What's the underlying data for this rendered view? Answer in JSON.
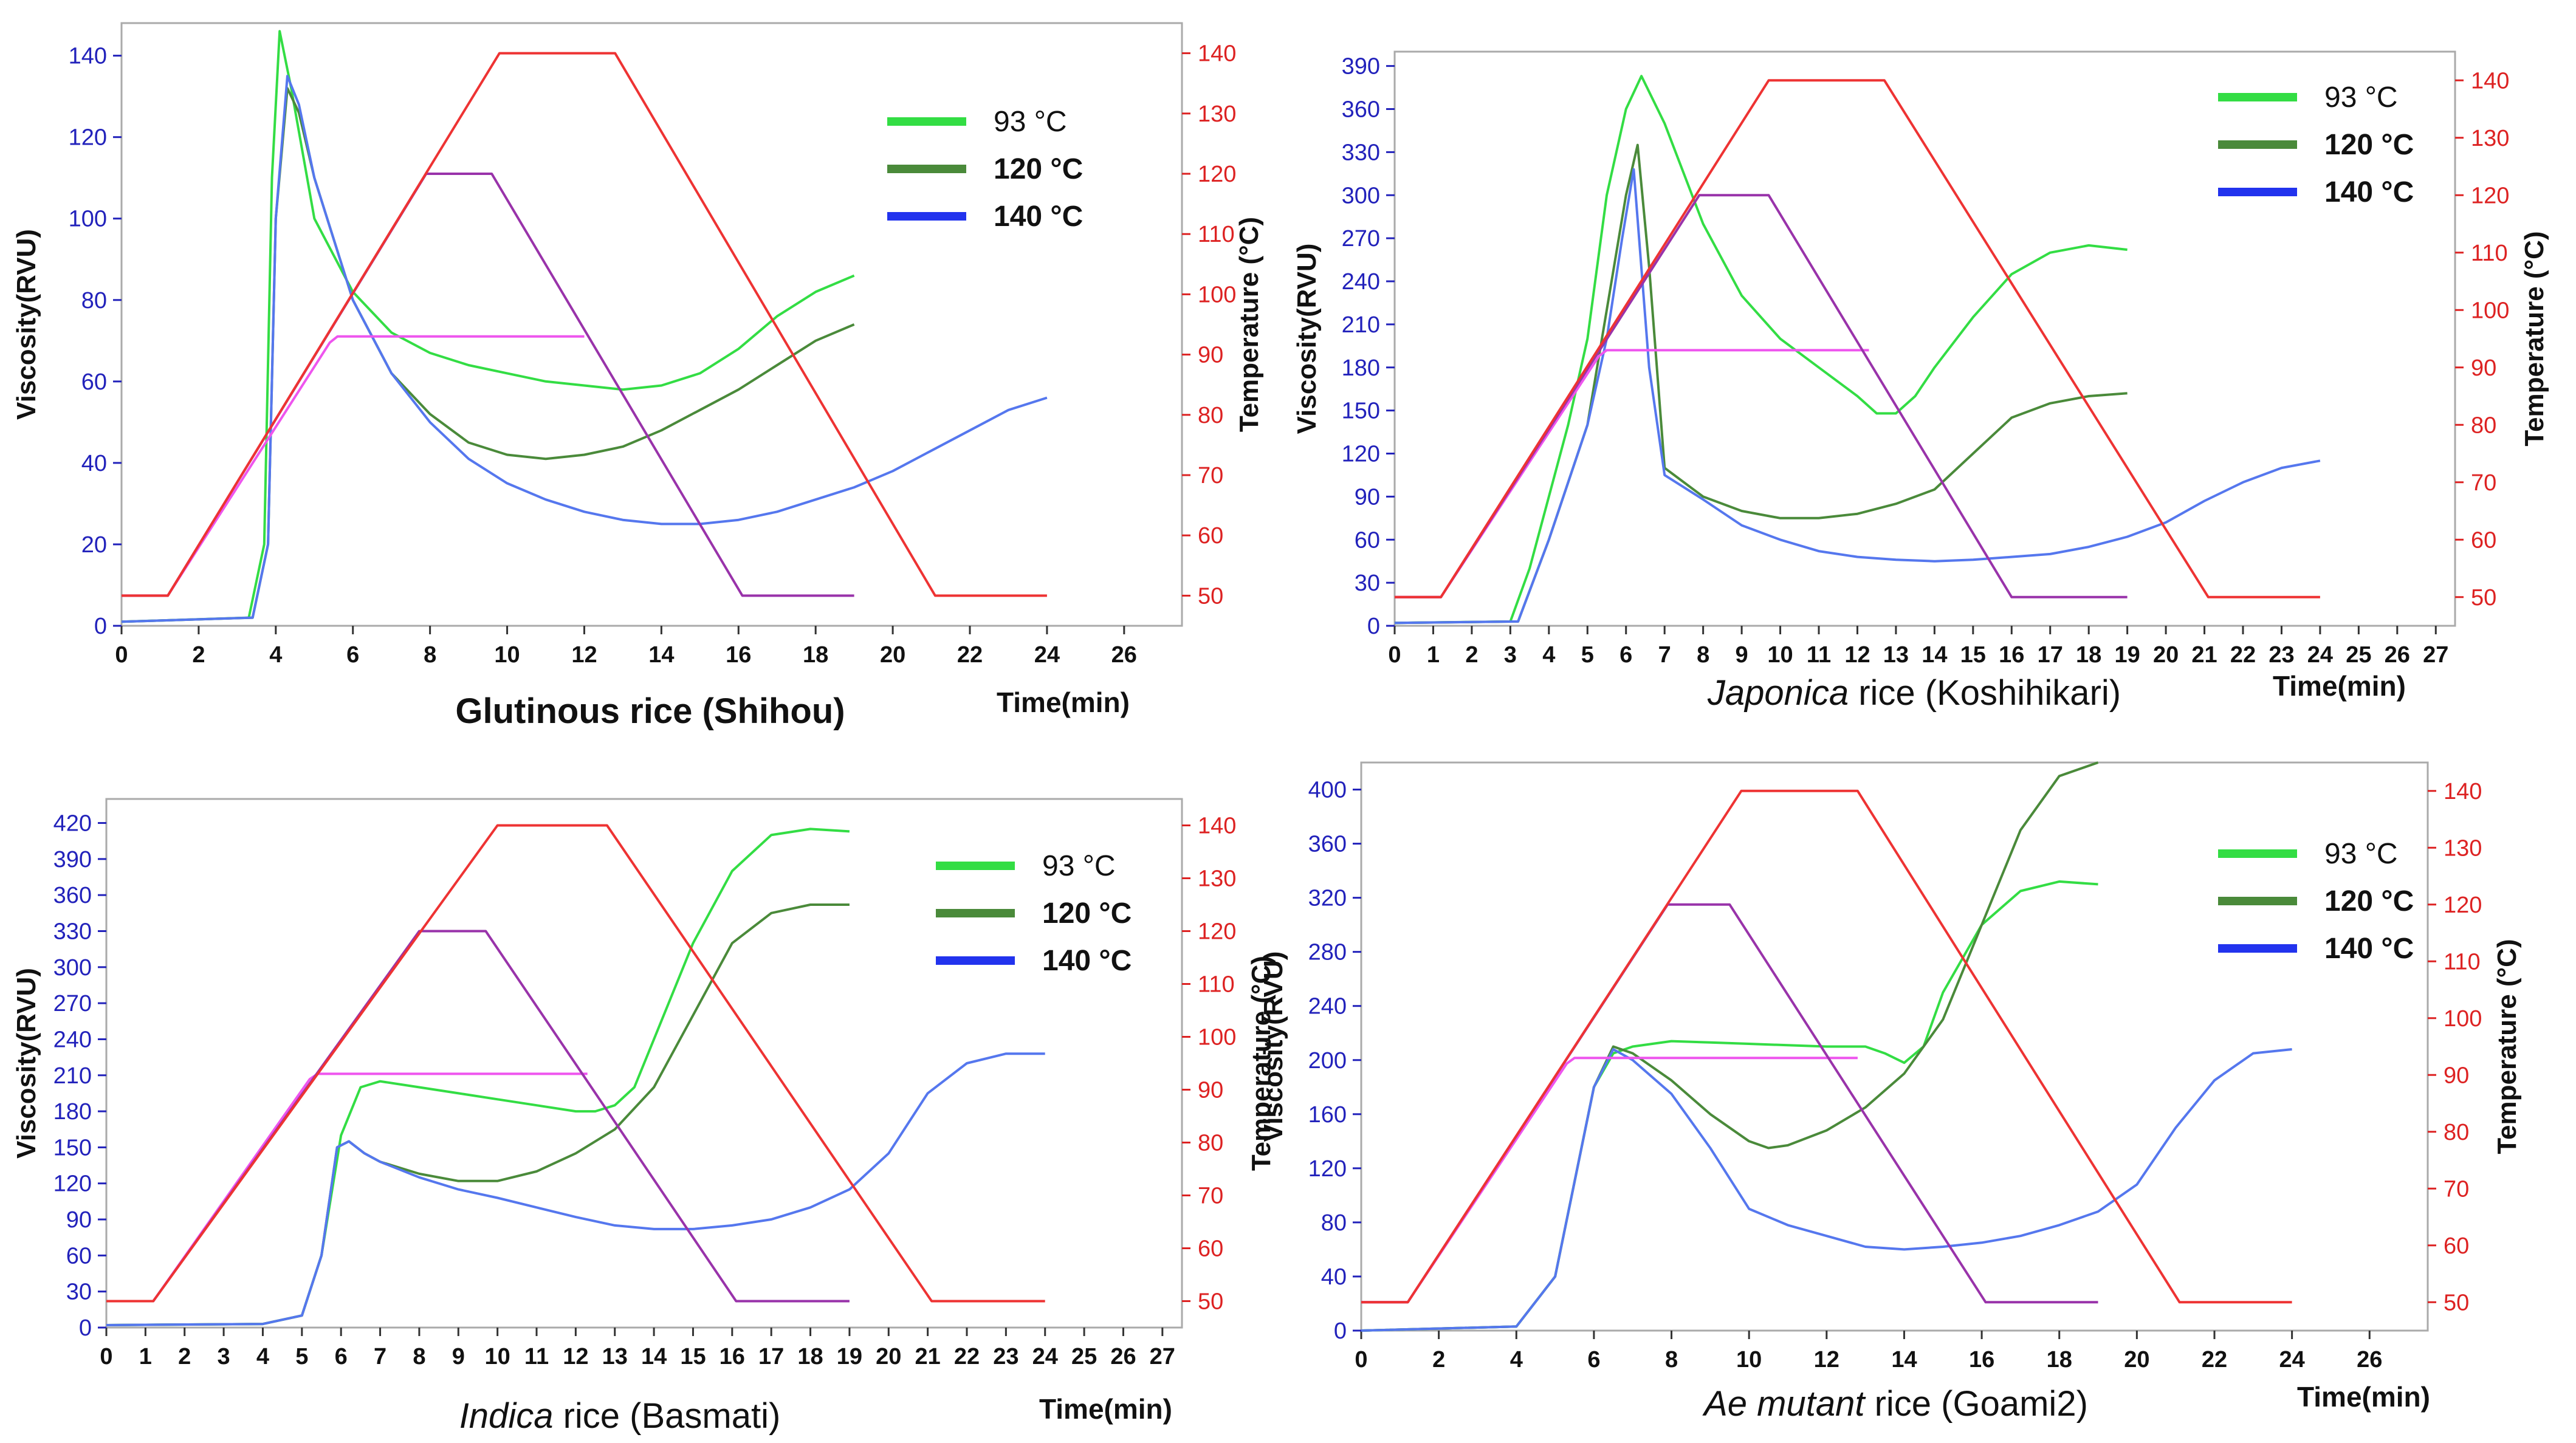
{
  "figure": {
    "x_axis_label": "Time(min)",
    "left_axis_label": "Viscosity(RVU)",
    "right_axis_label": "Temperature (°C)",
    "legend": [
      "93 °C",
      "120 °C",
      "140 °C"
    ],
    "legend_colors": [
      "#33dd44",
      "#4a8a3a",
      "#2233ee"
    ],
    "panels": [
      {
        "italic": "",
        "rest": "Glutinous rice (Shihou)"
      },
      {
        "italic": "Japonica",
        "rest": " rice (Koshihikari)"
      },
      {
        "italic": "Indica",
        "rest": " rice (Basmati)"
      },
      {
        "italic": "Ae mutant",
        "rest": " rice (Goami2)"
      }
    ]
  },
  "colors": {
    "axis_left": "#2222bb",
    "axis_right": "#dd2222",
    "v93": "#33dd44",
    "v120": "#4a8a3a",
    "v140": "#5577ee",
    "t93": "#ee55ee",
    "t120": "#9933aa",
    "t140": "#ee3333",
    "frame": "#aaaaaa"
  },
  "chart_data": [
    {
      "type": "line",
      "title": "Glutinous rice (Shihou)",
      "xlabel": "Time(min)",
      "ylabel": "Viscosity(RVU)",
      "y2label": "Temperature (°C)",
      "xlim": [
        0,
        27.5
      ],
      "ylim": [
        0,
        148
      ],
      "y2lim": [
        45,
        145
      ],
      "xticks": [
        0,
        2,
        4,
        6,
        8,
        10,
        12,
        14,
        16,
        18,
        20,
        22,
        24,
        26
      ],
      "yticks": [
        0,
        20,
        40,
        60,
        80,
        100,
        120,
        140
      ],
      "y2ticks": [
        50,
        60,
        70,
        80,
        90,
        100,
        110,
        120,
        130,
        140
      ],
      "series": [
        {
          "name": "93 °C",
          "axis": "viscosity",
          "x": [
            0,
            3.3,
            3.7,
            3.9,
            4.1,
            4.4,
            5,
            6,
            7,
            8,
            9,
            10,
            11,
            12,
            13,
            14,
            15,
            16,
            17,
            18,
            19
          ],
          "y": [
            1,
            2,
            20,
            110,
            146,
            132,
            100,
            82,
            72,
            67,
            64,
            62,
            60,
            59,
            58,
            59,
            62,
            68,
            76,
            82,
            86
          ]
        },
        {
          "name": "120 °C",
          "axis": "viscosity",
          "x": [
            0,
            3.4,
            3.8,
            4.0,
            4.3,
            4.6,
            5,
            6,
            7,
            8,
            9,
            10,
            11,
            12,
            13,
            14,
            15,
            16,
            17,
            18,
            19
          ],
          "y": [
            1,
            2,
            20,
            100,
            132,
            126,
            110,
            80,
            62,
            52,
            45,
            42,
            41,
            42,
            44,
            48,
            53,
            58,
            64,
            70,
            74
          ]
        },
        {
          "name": "140 °C",
          "axis": "viscosity",
          "x": [
            0,
            3.4,
            3.8,
            4.0,
            4.3,
            4.6,
            5,
            6,
            7,
            8,
            9,
            10,
            11,
            12,
            13,
            14,
            15,
            16,
            17,
            18,
            19,
            20,
            21,
            22,
            23,
            24
          ],
          "y": [
            1,
            2,
            20,
            100,
            135,
            128,
            110,
            80,
            62,
            50,
            41,
            35,
            31,
            28,
            26,
            25,
            25,
            26,
            28,
            31,
            34,
            38,
            43,
            48,
            53,
            56
          ]
        },
        {
          "name": "93 °C temperature",
          "axis": "temperature",
          "x": [
            0,
            0.3,
            1.2,
            5.4,
            5.6,
            12
          ],
          "y": [
            50,
            50,
            50,
            92,
            93,
            93
          ]
        },
        {
          "name": "120 °C temperature",
          "axis": "temperature",
          "x": [
            0,
            0.3,
            1.2,
            7.9,
            9.6,
            16.1,
            19
          ],
          "y": [
            50,
            50,
            50,
            120,
            120,
            50,
            50
          ]
        },
        {
          "name": "140 °C temperature",
          "axis": "temperature",
          "x": [
            0,
            0.3,
            1.2,
            9.8,
            12.8,
            21.1,
            24
          ],
          "y": [
            50,
            50,
            50,
            140,
            140,
            50,
            50
          ]
        }
      ]
    },
    {
      "type": "line",
      "title": "Japonica rice (Koshihikari)",
      "xlabel": "Time(min)",
      "ylabel": "Viscosity(RVU)",
      "y2label": "Temperature (°C)",
      "xlim": [
        0,
        27.5
      ],
      "ylim": [
        0,
        400
      ],
      "y2lim": [
        45,
        145
      ],
      "xticks": [
        0,
        1,
        2,
        3,
        4,
        5,
        6,
        7,
        8,
        9,
        10,
        11,
        12,
        13,
        14,
        15,
        16,
        17,
        18,
        19,
        20,
        21,
        22,
        23,
        24,
        25,
        26,
        27
      ],
      "yticks": [
        0,
        30,
        60,
        90,
        120,
        150,
        180,
        210,
        240,
        270,
        300,
        330,
        360,
        390
      ],
      "y2ticks": [
        50,
        60,
        70,
        80,
        90,
        100,
        110,
        120,
        130,
        140
      ],
      "series": [
        {
          "name": "93 °C",
          "axis": "viscosity",
          "x": [
            0,
            3,
            3.5,
            4,
            4.5,
            5,
            5.5,
            6,
            6.4,
            7,
            8,
            9,
            10,
            11,
            12,
            12.5,
            13,
            13.5,
            14,
            15,
            16,
            17,
            18,
            19
          ],
          "y": [
            2,
            3,
            40,
            90,
            140,
            200,
            300,
            360,
            383,
            350,
            280,
            230,
            200,
            180,
            160,
            148,
            148,
            160,
            180,
            215,
            245,
            260,
            265,
            262
          ]
        },
        {
          "name": "120 °C",
          "axis": "viscosity",
          "x": [
            0,
            3.2,
            4,
            5,
            5.5,
            6,
            6.3,
            6.6,
            7,
            8,
            9,
            10,
            11,
            12,
            13,
            14,
            15,
            16,
            17,
            18,
            19
          ],
          "y": [
            2,
            3,
            60,
            140,
            220,
            300,
            335,
            250,
            110,
            90,
            80,
            75,
            75,
            78,
            85,
            95,
            120,
            145,
            155,
            160,
            162
          ]
        },
        {
          "name": "140 °C",
          "axis": "viscosity",
          "x": [
            0,
            3.2,
            4,
            5,
            5.5,
            5.9,
            6.2,
            6.6,
            7,
            8,
            9,
            10,
            11,
            12,
            13,
            14,
            15,
            16,
            17,
            18,
            19,
            20,
            21,
            22,
            23,
            24
          ],
          "y": [
            2,
            3,
            60,
            140,
            200,
            270,
            318,
            180,
            105,
            88,
            70,
            60,
            52,
            48,
            46,
            45,
            46,
            48,
            50,
            55,
            62,
            72,
            87,
            100,
            110,
            115
          ]
        },
        {
          "name": "93 °C temperature",
          "axis": "temperature",
          "x": [
            0,
            0.3,
            1.2,
            5.3,
            5.5,
            12.3
          ],
          "y": [
            50,
            50,
            50,
            92,
            93,
            93
          ]
        },
        {
          "name": "120 °C temperature",
          "axis": "temperature",
          "x": [
            0,
            0.3,
            1.2,
            7.9,
            9.7,
            16,
            19
          ],
          "y": [
            50,
            50,
            50,
            120,
            120,
            50,
            50
          ]
        },
        {
          "name": "140 °C temperature",
          "axis": "temperature",
          "x": [
            0,
            0.3,
            1.2,
            9.7,
            12.7,
            21.1,
            24
          ],
          "y": [
            50,
            50,
            50,
            140,
            140,
            50,
            50
          ]
        }
      ]
    },
    {
      "type": "line",
      "title": "Indica rice (Basmati)",
      "xlabel": "Time(min)",
      "ylabel": "Viscosity(RVU)",
      "y2label": "Temperature (°C)",
      "xlim": [
        0,
        27.5
      ],
      "ylim": [
        0,
        440
      ],
      "y2lim": [
        45,
        145
      ],
      "xticks": [
        0,
        1,
        2,
        3,
        4,
        5,
        6,
        7,
        8,
        9,
        10,
        11,
        12,
        13,
        14,
        15,
        16,
        17,
        18,
        19,
        20,
        21,
        22,
        23,
        24,
        25,
        26,
        27
      ],
      "yticks": [
        0,
        30,
        60,
        90,
        120,
        150,
        180,
        210,
        240,
        270,
        300,
        330,
        360,
        390,
        420
      ],
      "y2ticks": [
        50,
        60,
        70,
        80,
        90,
        100,
        110,
        120,
        130,
        140
      ],
      "series": [
        {
          "name": "93 °C",
          "axis": "viscosity",
          "x": [
            0,
            4,
            5,
            5.5,
            6,
            6.5,
            7,
            8,
            9,
            10,
            11,
            12,
            12.5,
            13,
            13.5,
            14,
            15,
            16,
            17,
            18,
            19
          ],
          "y": [
            2,
            3,
            10,
            60,
            160,
            200,
            205,
            200,
            195,
            190,
            185,
            180,
            180,
            185,
            200,
            240,
            320,
            380,
            410,
            415,
            413
          ]
        },
        {
          "name": "120 °C",
          "axis": "viscosity",
          "x": [
            0,
            4,
            5,
            5.5,
            5.9,
            6.2,
            6.6,
            7,
            8,
            9,
            10,
            11,
            12,
            13,
            14,
            15,
            16,
            17,
            18,
            19
          ],
          "y": [
            2,
            3,
            10,
            60,
            150,
            155,
            145,
            138,
            128,
            122,
            122,
            130,
            145,
            165,
            200,
            260,
            320,
            345,
            352,
            352
          ]
        },
        {
          "name": "140 °C",
          "axis": "viscosity",
          "x": [
            0,
            4,
            5,
            5.5,
            5.9,
            6.2,
            6.6,
            7,
            8,
            9,
            10,
            11,
            12,
            13,
            14,
            15,
            16,
            17,
            18,
            19,
            20,
            21,
            22,
            23,
            24
          ],
          "y": [
            2,
            3,
            10,
            60,
            150,
            155,
            145,
            138,
            125,
            115,
            108,
            100,
            92,
            85,
            82,
            82,
            85,
            90,
            100,
            115,
            145,
            195,
            220,
            228,
            228
          ]
        },
        {
          "name": "93 °C temperature",
          "axis": "temperature",
          "x": [
            0,
            0.3,
            1.2,
            5.2,
            5.4,
            12.3
          ],
          "y": [
            50,
            50,
            50,
            92,
            93,
            93
          ]
        },
        {
          "name": "120 °C temperature",
          "axis": "temperature",
          "x": [
            0,
            0.3,
            1.2,
            8,
            9.7,
            16.1,
            19
          ],
          "y": [
            50,
            50,
            50,
            120,
            120,
            50,
            50
          ]
        },
        {
          "name": "140 °C temperature",
          "axis": "temperature",
          "x": [
            0,
            0.3,
            1.2,
            10,
            12.8,
            21.1,
            24
          ],
          "y": [
            50,
            50,
            50,
            140,
            140,
            50,
            50
          ]
        }
      ]
    },
    {
      "type": "line",
      "title": "Ae mutant rice (Goami2)",
      "xlabel": "Time(min)",
      "ylabel": "Viscosity(RVU)",
      "y2label": "Temperature (°C)",
      "xlim": [
        0,
        27.5
      ],
      "ylim": [
        0,
        420
      ],
      "y2lim": [
        45,
        145
      ],
      "xticks": [
        0,
        2,
        4,
        6,
        8,
        10,
        12,
        14,
        16,
        18,
        20,
        22,
        24,
        26
      ],
      "yticks": [
        0,
        40,
        80,
        120,
        160,
        200,
        240,
        280,
        320,
        360,
        400
      ],
      "y2ticks": [
        50,
        60,
        70,
        80,
        90,
        100,
        110,
        120,
        130,
        140
      ],
      "series": [
        {
          "name": "93 °C",
          "axis": "viscosity",
          "x": [
            0,
            4,
            5,
            5.5,
            6,
            6.5,
            7,
            8,
            9,
            10,
            11,
            12,
            13,
            13.5,
            14,
            14.5,
            15,
            16,
            17,
            18,
            19
          ],
          "y": [
            0,
            3,
            40,
            110,
            180,
            205,
            210,
            214,
            213,
            212,
            211,
            210,
            210,
            205,
            198,
            210,
            250,
            300,
            325,
            332,
            330
          ]
        },
        {
          "name": "120 °C",
          "axis": "viscosity",
          "x": [
            0,
            4,
            5,
            5.5,
            6,
            6.5,
            7,
            8,
            9,
            10,
            10.5,
            11,
            12,
            13,
            14,
            15,
            16,
            17,
            18,
            19
          ],
          "y": [
            0,
            3,
            40,
            110,
            180,
            210,
            205,
            185,
            160,
            140,
            135,
            137,
            148,
            165,
            190,
            230,
            300,
            370,
            410,
            420
          ]
        },
        {
          "name": "140 °C",
          "axis": "viscosity",
          "x": [
            0,
            4,
            5,
            5.5,
            6,
            6.5,
            7,
            8,
            9,
            10,
            11,
            12,
            13,
            14,
            15,
            16,
            17,
            18,
            19,
            20,
            21,
            22,
            23,
            24
          ],
          "y": [
            0,
            3,
            40,
            110,
            180,
            208,
            200,
            175,
            135,
            90,
            78,
            70,
            62,
            60,
            62,
            65,
            70,
            78,
            88,
            108,
            150,
            185,
            205,
            208
          ]
        },
        {
          "name": "93 °C temperature",
          "axis": "temperature",
          "x": [
            0,
            0.3,
            1.2,
            5.3,
            5.5,
            12.8
          ],
          "y": [
            50,
            50,
            50,
            92,
            93,
            93
          ]
        },
        {
          "name": "120 °C temperature",
          "axis": "temperature",
          "x": [
            0,
            0.3,
            1.2,
            7.9,
            9.5,
            16.1,
            19
          ],
          "y": [
            50,
            50,
            50,
            120,
            120,
            50,
            50
          ]
        },
        {
          "name": "140 °C temperature",
          "axis": "temperature",
          "x": [
            0,
            0.3,
            1.2,
            9.8,
            12.8,
            21.1,
            24
          ],
          "y": [
            50,
            50,
            50,
            140,
            140,
            50,
            50
          ]
        }
      ]
    }
  ]
}
